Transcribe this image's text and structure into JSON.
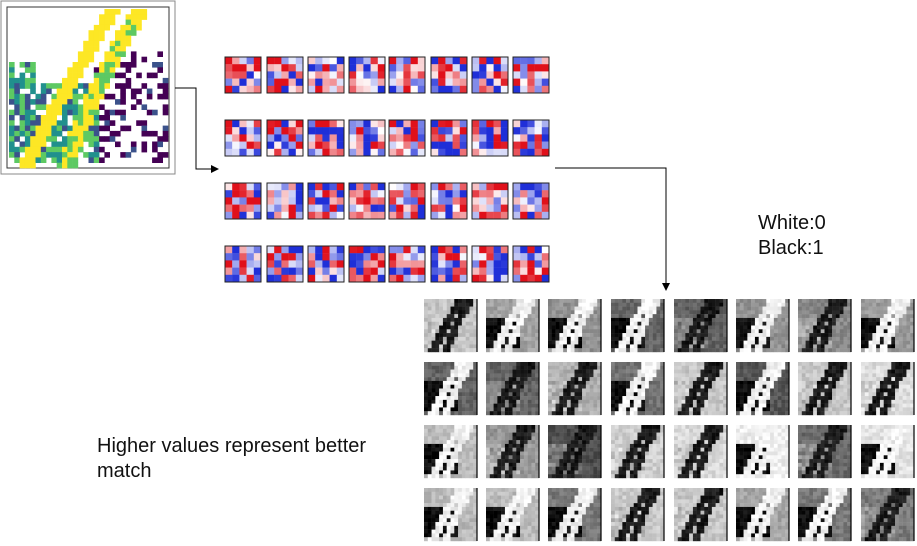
{
  "diagram": {
    "input_image": {
      "label": "input image",
      "colormap": [
        "#440154",
        "#3b528b",
        "#21908d",
        "#5dc963",
        "#fde725"
      ]
    },
    "filters": {
      "rows": 4,
      "cols": 8,
      "grid": 5,
      "colors": {
        "negative": "#1f2fd8",
        "positive": "#e0101a",
        "neutral": "#ffffff"
      }
    },
    "feature_maps": {
      "rows": 4,
      "cols": 8
    },
    "legend": {
      "white": "White:0",
      "black": "Black:1"
    },
    "note": "Higher values represent better match"
  }
}
